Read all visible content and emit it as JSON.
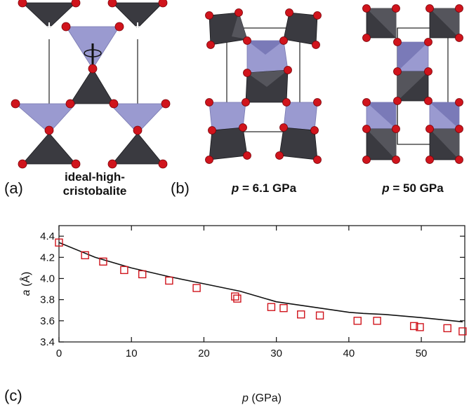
{
  "panels": {
    "a": {
      "letter": "(a)",
      "caption_line1": "ideal-high-",
      "caption_line2": "cristobalite"
    },
    "b": {
      "letter": "(b)",
      "caption1_var": "p",
      "caption1_val": " = 6.1 GPa",
      "caption2_var": "p",
      "caption2_val": " = 50 GPa"
    },
    "c": {
      "letter": "(c)"
    }
  },
  "colors": {
    "oxygen": "#d0141c",
    "tetra_dark": "#3a3a40",
    "tetra_light": "#9a9ad0",
    "markers": "#d0141c"
  },
  "chart_data": {
    "type": "scatter",
    "xlabel_var": "p",
    "xlabel_unit": " (GPa)",
    "ylabel_var": "a",
    "ylabel_unit": " (Å)",
    "xlim": [
      0,
      56
    ],
    "ylim": [
      3.4,
      4.5
    ],
    "xticks": [
      0,
      10,
      20,
      30,
      40,
      50
    ],
    "yticks": [
      3.4,
      3.6,
      3.8,
      4.0,
      4.2,
      4.4
    ],
    "ytick_labels": [
      "3.4",
      "3.6",
      "3.8",
      "4.0",
      "4.2",
      "4.4"
    ],
    "grid": false,
    "series": [
      {
        "marker": "square",
        "x": [
          0,
          3.6,
          6.1,
          9.0,
          11.5,
          15.2,
          19.0,
          24.3,
          24.6,
          29.3,
          31.0,
          33.4,
          36.0,
          41.2,
          43.9,
          49.0,
          49.8,
          53.6,
          55.7
        ],
        "y": [
          4.34,
          4.22,
          4.16,
          4.08,
          4.04,
          3.98,
          3.91,
          3.83,
          3.81,
          3.73,
          3.72,
          3.66,
          3.65,
          3.6,
          3.6,
          3.55,
          3.54,
          3.53,
          3.5
        ]
      },
      {
        "marker": "line",
        "x": [
          0,
          5,
          10,
          15,
          20,
          25,
          30,
          35,
          40,
          42,
          45,
          50,
          55.7
        ],
        "y": [
          4.34,
          4.2,
          4.1,
          4.02,
          3.95,
          3.88,
          3.78,
          3.73,
          3.68,
          3.67,
          3.66,
          3.63,
          3.59
        ]
      }
    ]
  }
}
